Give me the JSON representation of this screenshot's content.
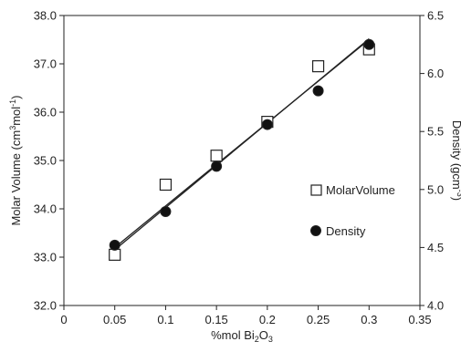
{
  "chart_data": {
    "type": "scatter",
    "title": "",
    "xlabel": "%mol Bi2O3",
    "xlabel_parts": {
      "pre": "%mol Bi",
      "sub1": "2",
      "mid": "O",
      "sub2": "3"
    },
    "ylabel_left": "Molar Volume (cm3mol-1)",
    "ylabel_left_parts": {
      "pre": "Molar Volume (cm",
      "sup1": "3",
      "mid": "mol",
      "sup2": "-1",
      "post": ")"
    },
    "ylabel_right": "Density (gcm-3)",
    "ylabel_right_parts": {
      "pre": "Density (gcm",
      "sup": "-3",
      "post": ")"
    },
    "xlim": [
      0,
      0.35
    ],
    "ylim_left": [
      32.0,
      38.0
    ],
    "ylim_right": [
      4.0,
      6.5
    ],
    "x_ticks": [
      "0",
      "0.05",
      "0.1",
      "0.15",
      "0.2",
      "0.25",
      "0.3",
      "0.35"
    ],
    "y_left_ticks": [
      "32.0",
      "33.0",
      "34.0",
      "35.0",
      "36.0",
      "37.0",
      "38.0"
    ],
    "y_right_ticks": [
      "4.0",
      "4.5",
      "5.0",
      "5.5",
      "6.0",
      "6.5"
    ],
    "grid": false,
    "legend_position": "right",
    "series": [
      {
        "name": "MolarVolume",
        "axis": "left",
        "marker": "open-square",
        "x": [
          0.05,
          0.1,
          0.15,
          0.2,
          0.25,
          0.3
        ],
        "y": [
          33.05,
          34.5,
          35.1,
          35.8,
          36.95,
          37.3
        ],
        "fit": [
          [
            0.05,
            33.2
          ],
          [
            0.3,
            37.5
          ]
        ]
      },
      {
        "name": "Density",
        "axis": "right",
        "marker": "filled-circle",
        "x": [
          0.05,
          0.1,
          0.15,
          0.2,
          0.25,
          0.3
        ],
        "y": [
          4.52,
          4.81,
          5.2,
          5.56,
          5.85,
          6.25
        ],
        "fit": [
          [
            0.05,
            4.48
          ],
          [
            0.3,
            6.3
          ]
        ]
      }
    ]
  }
}
